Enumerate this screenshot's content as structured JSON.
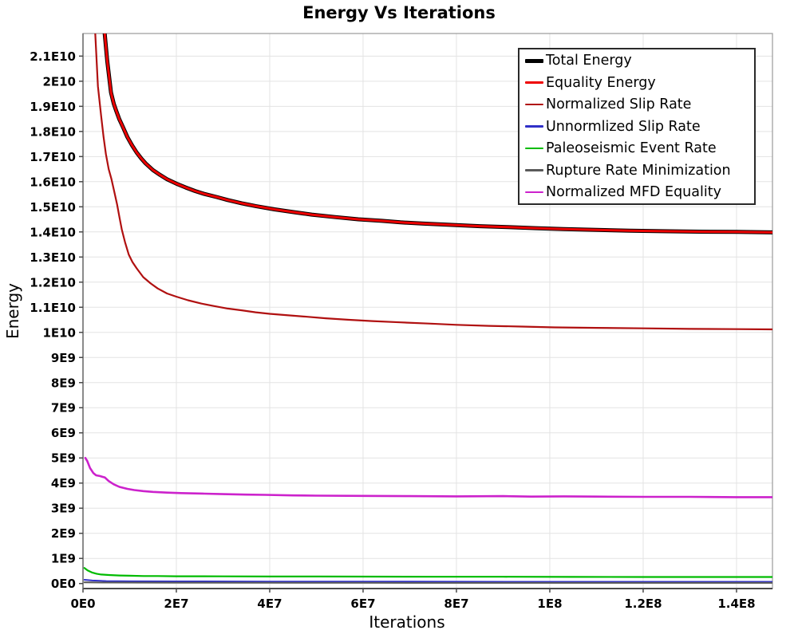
{
  "title": "Energy Vs Iterations",
  "chart_data": {
    "type": "line",
    "title": "Energy Vs Iterations",
    "xlabel": "Iterations",
    "ylabel": "Energy",
    "xlim": [
      0,
      147700000.0
    ],
    "ylim": [
      -200000000.0,
      21900000000.0
    ],
    "grid": true,
    "background": "#ffffff",
    "gridline_color": "#e3e3e3",
    "legend_position": "top-right-inside",
    "x_ticks": [
      {
        "value": 0,
        "label": "0E0"
      },
      {
        "value": 20000000.0,
        "label": "2E7"
      },
      {
        "value": 40000000.0,
        "label": "4E7"
      },
      {
        "value": 60000000.0,
        "label": "6E7"
      },
      {
        "value": 80000000.0,
        "label": "8E7"
      },
      {
        "value": 100000000.0,
        "label": "1E8"
      },
      {
        "value": 120000000.0,
        "label": "1.2E8"
      },
      {
        "value": 140000000.0,
        "label": "1.4E8"
      }
    ],
    "y_ticks": [
      {
        "value": 0,
        "label": "0E0"
      },
      {
        "value": 1000000000.0,
        "label": "1E9"
      },
      {
        "value": 2000000000.0,
        "label": "2E9"
      },
      {
        "value": 3000000000.0,
        "label": "3E9"
      },
      {
        "value": 4000000000.0,
        "label": "4E9"
      },
      {
        "value": 5000000000.0,
        "label": "5E9"
      },
      {
        "value": 6000000000.0,
        "label": "6E9"
      },
      {
        "value": 7000000000.0,
        "label": "7E9"
      },
      {
        "value": 8000000000.0,
        "label": "8E9"
      },
      {
        "value": 9000000000.0,
        "label": "9E9"
      },
      {
        "value": 10000000000.0,
        "label": "1E10"
      },
      {
        "value": 11000000000.0,
        "label": "1.1E10"
      },
      {
        "value": 12000000000.0,
        "label": "1.2E10"
      },
      {
        "value": 13000000000.0,
        "label": "1.3E10"
      },
      {
        "value": 14000000000.0,
        "label": "1.4E10"
      },
      {
        "value": 15000000000.0,
        "label": "1.5E10"
      },
      {
        "value": 16000000000.0,
        "label": "1.6E10"
      },
      {
        "value": 17000000000.0,
        "label": "1.7E10"
      },
      {
        "value": 18000000000.0,
        "label": "1.8E10"
      },
      {
        "value": 19000000000.0,
        "label": "1.9E10"
      },
      {
        "value": 20000000000.0,
        "label": "2E10"
      },
      {
        "value": 21000000000.0,
        "label": "2.1E10"
      }
    ],
    "series": [
      {
        "name": "Total Energy",
        "color": "#000000",
        "width": 5,
        "points": [
          [
            3000000.0,
            30000000000.0
          ],
          [
            4600000.0,
            22000000000.0
          ],
          [
            5200000.0,
            20800000000.0
          ],
          [
            6000000.0,
            19550000000.0
          ],
          [
            6600000.0,
            19100000000.0
          ],
          [
            7200000.0,
            18780000000.0
          ],
          [
            7800000.0,
            18480000000.0
          ],
          [
            8500000.0,
            18200000000.0
          ],
          [
            9500000.0,
            17780000000.0
          ],
          [
            10500000.0,
            17450000000.0
          ],
          [
            11500000.0,
            17160000000.0
          ],
          [
            12500000.0,
            16920000000.0
          ],
          [
            13400000.0,
            16730000000.0
          ],
          [
            15000000.0,
            16460000000.0
          ],
          [
            16500000.0,
            16270000000.0
          ],
          [
            18000000.0,
            16100000000.0
          ],
          [
            20000000.0,
            15920000000.0
          ],
          [
            22000000.0,
            15770000000.0
          ],
          [
            24000000.0,
            15630000000.0
          ],
          [
            26000000.0,
            15510000000.0
          ],
          [
            28600000.0,
            15390000000.0
          ],
          [
            31000000.0,
            15270000000.0
          ],
          [
            34000000.0,
            15140000000.0
          ],
          [
            37000000.0,
            15030000000.0
          ],
          [
            41000000.0,
            14900000000.0
          ],
          [
            45000000.0,
            14790000000.0
          ],
          [
            49000000.0,
            14690000000.0
          ],
          [
            54000000.0,
            14590000000.0
          ],
          [
            59000000.0,
            14500000000.0
          ],
          [
            64000000.0,
            14440000000.0
          ],
          [
            68000000.0,
            14380000000.0
          ],
          [
            73000000.0,
            14330000000.0
          ],
          [
            79000000.0,
            14280000000.0
          ],
          [
            85000000.0,
            14230000000.0
          ],
          [
            91000000.0,
            14190000000.0
          ],
          [
            97000000.0,
            14150000000.0
          ],
          [
            103000000.0,
            14110000000.0
          ],
          [
            110000000.0,
            14080000000.0
          ],
          [
            117000000.0,
            14050000000.0
          ],
          [
            124000000.0,
            14030000000.0
          ],
          [
            132000000.0,
            14010000000.0
          ],
          [
            140000000.0,
            14000000000.0
          ],
          [
            147700000.0,
            13980000000.0
          ]
        ]
      },
      {
        "name": "Equality Energy",
        "color": "#ee0000",
        "width": 3,
        "points": [
          [
            3000000.0,
            30000000000.0
          ],
          [
            4600000.0,
            22000000000.0
          ],
          [
            5200000.0,
            20800000000.0
          ],
          [
            6000000.0,
            19550000000.0
          ],
          [
            6600000.0,
            19100000000.0
          ],
          [
            7200000.0,
            18780000000.0
          ],
          [
            7800000.0,
            18480000000.0
          ],
          [
            8500000.0,
            18200000000.0
          ],
          [
            9500000.0,
            17780000000.0
          ],
          [
            10500000.0,
            17450000000.0
          ],
          [
            11500000.0,
            17160000000.0
          ],
          [
            12500000.0,
            16920000000.0
          ],
          [
            13400000.0,
            16730000000.0
          ],
          [
            15000000.0,
            16460000000.0
          ],
          [
            16500000.0,
            16270000000.0
          ],
          [
            18000000.0,
            16100000000.0
          ],
          [
            20000000.0,
            15920000000.0
          ],
          [
            22000000.0,
            15770000000.0
          ],
          [
            24000000.0,
            15630000000.0
          ],
          [
            26000000.0,
            15510000000.0
          ],
          [
            28600000.0,
            15390000000.0
          ],
          [
            31000000.0,
            15270000000.0
          ],
          [
            34000000.0,
            15140000000.0
          ],
          [
            37000000.0,
            15030000000.0
          ],
          [
            41000000.0,
            14900000000.0
          ],
          [
            45000000.0,
            14790000000.0
          ],
          [
            49000000.0,
            14690000000.0
          ],
          [
            54000000.0,
            14590000000.0
          ],
          [
            59000000.0,
            14500000000.0
          ],
          [
            64000000.0,
            14440000000.0
          ],
          [
            68000000.0,
            14380000000.0
          ],
          [
            73000000.0,
            14330000000.0
          ],
          [
            79000000.0,
            14280000000.0
          ],
          [
            85000000.0,
            14230000000.0
          ],
          [
            91000000.0,
            14190000000.0
          ],
          [
            97000000.0,
            14150000000.0
          ],
          [
            103000000.0,
            14110000000.0
          ],
          [
            110000000.0,
            14080000000.0
          ],
          [
            117000000.0,
            14050000000.0
          ],
          [
            124000000.0,
            14030000000.0
          ],
          [
            132000000.0,
            14010000000.0
          ],
          [
            140000000.0,
            14000000000.0
          ],
          [
            147700000.0,
            13980000000.0
          ]
        ]
      },
      {
        "name": "Normalized Slip Rate",
        "color": "#b01010",
        "width": 2.2,
        "points": [
          [
            1900000.0,
            30000000000.0
          ],
          [
            2600000.0,
            22000000000.0
          ],
          [
            3200000.0,
            19800000000.0
          ],
          [
            3900000.0,
            18600000000.0
          ],
          [
            4400000.0,
            17800000000.0
          ],
          [
            4900000.0,
            17100000000.0
          ],
          [
            5500000.0,
            16500000000.0
          ],
          [
            6100000.0,
            16100000000.0
          ],
          [
            6700000.0,
            15600000000.0
          ],
          [
            7300000.0,
            15100000000.0
          ],
          [
            7800000.0,
            14600000000.0
          ],
          [
            8300000.0,
            14100000000.0
          ],
          [
            9000000.0,
            13600000000.0
          ],
          [
            9800000.0,
            13100000000.0
          ],
          [
            10600000.0,
            12800000000.0
          ],
          [
            11500000.0,
            12550000000.0
          ],
          [
            12900000.0,
            12200000000.0
          ],
          [
            14500000.0,
            11950000000.0
          ],
          [
            16000000.0,
            11750000000.0
          ],
          [
            18000000.0,
            11550000000.0
          ],
          [
            20000000.0,
            11420000000.0
          ],
          [
            22500000.0,
            11280000000.0
          ],
          [
            25300000.0,
            11150000000.0
          ],
          [
            28000000.0,
            11050000000.0
          ],
          [
            31000000.0,
            10950000000.0
          ],
          [
            34000000.0,
            10880000000.0
          ],
          [
            37000000.0,
            10800000000.0
          ],
          [
            40000000.0,
            10740000000.0
          ],
          [
            44000000.0,
            10680000000.0
          ],
          [
            48000000.0,
            10620000000.0
          ],
          [
            52000000.0,
            10560000000.0
          ],
          [
            57000000.0,
            10500000000.0
          ],
          [
            62000000.0,
            10450000000.0
          ],
          [
            68000000.0,
            10400000000.0
          ],
          [
            74000000.0,
            10350000000.0
          ],
          [
            80000000.0,
            10300000000.0
          ],
          [
            87000000.0,
            10260000000.0
          ],
          [
            94000000.0,
            10230000000.0
          ],
          [
            101000000.0,
            10200000000.0
          ],
          [
            110000000.0,
            10180000000.0
          ],
          [
            120000000.0,
            10160000000.0
          ],
          [
            130000000.0,
            10140000000.0
          ],
          [
            140000000.0,
            10130000000.0
          ],
          [
            147700000.0,
            10120000000.0
          ]
        ]
      },
      {
        "name": "Unnormlized Slip Rate",
        "color": "#3030c8",
        "width": 2,
        "points": [
          [
            300000.0,
            150000000.0
          ],
          [
            2000000.0,
            120000000.0
          ],
          [
            5000000.0,
            100000000.0
          ],
          [
            10000000.0,
            90000000.0
          ],
          [
            20000000.0,
            85000000.0
          ],
          [
            40000000.0,
            80000000.0
          ],
          [
            70000000.0,
            75000000.0
          ],
          [
            100000000.0,
            70000000.0
          ],
          [
            130000000.0,
            70000000.0
          ],
          [
            147700000.0,
            70000000.0
          ]
        ]
      },
      {
        "name": "Paleoseismic Event Rate",
        "color": "#00bb00",
        "width": 2.2,
        "points": [
          [
            300000.0,
            620000000.0
          ],
          [
            1000000.0,
            520000000.0
          ],
          [
            1900000.0,
            440000000.0
          ],
          [
            2900000.0,
            390000000.0
          ],
          [
            3900000.0,
            360000000.0
          ],
          [
            5500000.0,
            340000000.0
          ],
          [
            7800000.0,
            320000000.0
          ],
          [
            10000000.0,
            310000000.0
          ],
          [
            13000000.0,
            300000000.0
          ],
          [
            16000000.0,
            300000000.0
          ],
          [
            20000000.0,
            290000000.0
          ],
          [
            25000000.0,
            290000000.0
          ],
          [
            30000000.0,
            285000000.0
          ],
          [
            40000000.0,
            280000000.0
          ],
          [
            50000000.0,
            280000000.0
          ],
          [
            60000000.0,
            275000000.0
          ],
          [
            75000000.0,
            270000000.0
          ],
          [
            90000000.0,
            270000000.0
          ],
          [
            105000000.0,
            265000000.0
          ],
          [
            120000000.0,
            260000000.0
          ],
          [
            135000000.0,
            260000000.0
          ],
          [
            147700000.0,
            260000000.0
          ]
        ]
      },
      {
        "name": "Rupture Rate Minimization",
        "color": "#5a5a5a",
        "width": 2,
        "points": [
          [
            300000.0,
            50000000.0
          ],
          [
            5000000.0,
            40000000.0
          ],
          [
            20000000.0,
            35000000.0
          ],
          [
            60000000.0,
            30000000.0
          ],
          [
            100000000.0,
            25000000.0
          ],
          [
            147700000.0,
            25000000.0
          ]
        ]
      },
      {
        "name": "Normalized MFD Equality",
        "color": "#cc22cc",
        "width": 2.6,
        "points": [
          [
            500000.0,
            5000000000.0
          ],
          [
            900000.0,
            4880000000.0
          ],
          [
            1500000.0,
            4600000000.0
          ],
          [
            2200000.0,
            4400000000.0
          ],
          [
            2800000.0,
            4310000000.0
          ],
          [
            3600000.0,
            4280000000.0
          ],
          [
            4700000.0,
            4220000000.0
          ],
          [
            5500000.0,
            4080000000.0
          ],
          [
            6600000.0,
            3950000000.0
          ],
          [
            7800000.0,
            3850000000.0
          ],
          [
            9500000.0,
            3770000000.0
          ],
          [
            11000000.0,
            3720000000.0
          ],
          [
            12900000.0,
            3680000000.0
          ],
          [
            15000000.0,
            3650000000.0
          ],
          [
            18000000.0,
            3620000000.0
          ],
          [
            21000000.0,
            3600000000.0
          ],
          [
            26000000.0,
            3580000000.0
          ],
          [
            30000000.0,
            3560000000.0
          ],
          [
            35000000.0,
            3540000000.0
          ],
          [
            39000000.0,
            3530000000.0
          ],
          [
            45000000.0,
            3510000000.0
          ],
          [
            50000000.0,
            3500000000.0
          ],
          [
            60000000.0,
            3490000000.0
          ],
          [
            70000000.0,
            3480000000.0
          ],
          [
            80000000.0,
            3470000000.0
          ],
          [
            90000000.0,
            3480000000.0
          ],
          [
            96000000.0,
            3460000000.0
          ],
          [
            103000000.0,
            3470000000.0
          ],
          [
            110000000.0,
            3460000000.0
          ],
          [
            120000000.0,
            3450000000.0
          ],
          [
            130000000.0,
            3450000000.0
          ],
          [
            140000000.0,
            3440000000.0
          ],
          [
            147700000.0,
            3440000000.0
          ]
        ]
      }
    ]
  }
}
